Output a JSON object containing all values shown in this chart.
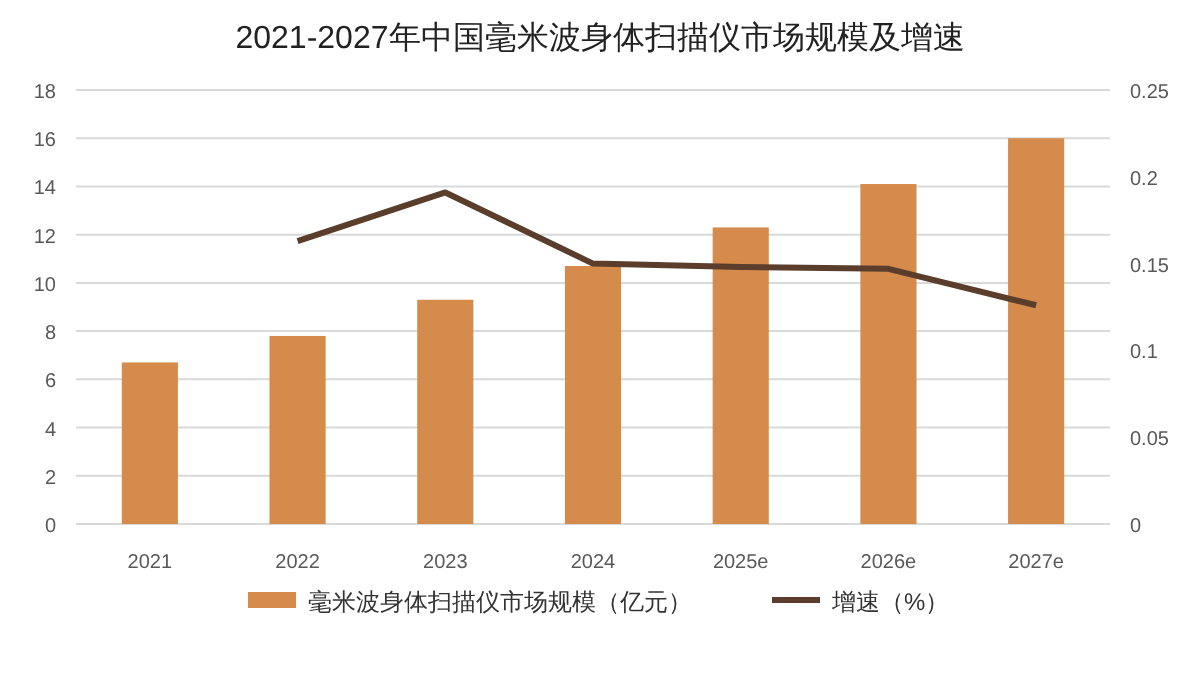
{
  "chart_data": {
    "type": "bar",
    "title": "2021-2027年中国毫米波身体扫描仪市场规模及增速",
    "categories": [
      "2021",
      "2022",
      "2023",
      "2024",
      "2025e",
      "2026e",
      "2027e"
    ],
    "series": [
      {
        "name": "毫米波身体扫描仪市场规模（亿元）",
        "color": "#d48b4c",
        "values": [
          6.7,
          7.8,
          9.3,
          10.7,
          12.3,
          14.1,
          16.0
        ]
      },
      {
        "name": "增速（%）",
        "type": "line",
        "axis": "y2",
        "color": "#5a3e2b",
        "values": [
          null,
          0.163,
          0.191,
          0.15,
          0.148,
          0.147,
          0.126
        ]
      }
    ],
    "ylim": [
      0,
      18
    ],
    "yticks": [
      0,
      2,
      4,
      6,
      8,
      10,
      12,
      14,
      16,
      18
    ],
    "y2lim": [
      0,
      0.25
    ],
    "y2ticks": [
      0,
      {
        "value": 0.05,
        "label": "0.05"
      },
      {
        "value": 0.1,
        "label": "0.1"
      },
      {
        "value": 0.15,
        "label": "0.15"
      },
      {
        "value": 0.2,
        "label": "0.2"
      },
      {
        "value": 0.25,
        "label": "0.25"
      }
    ],
    "grid": "y",
    "legend": "bottom",
    "marker": "none",
    "line_style": "solid"
  }
}
